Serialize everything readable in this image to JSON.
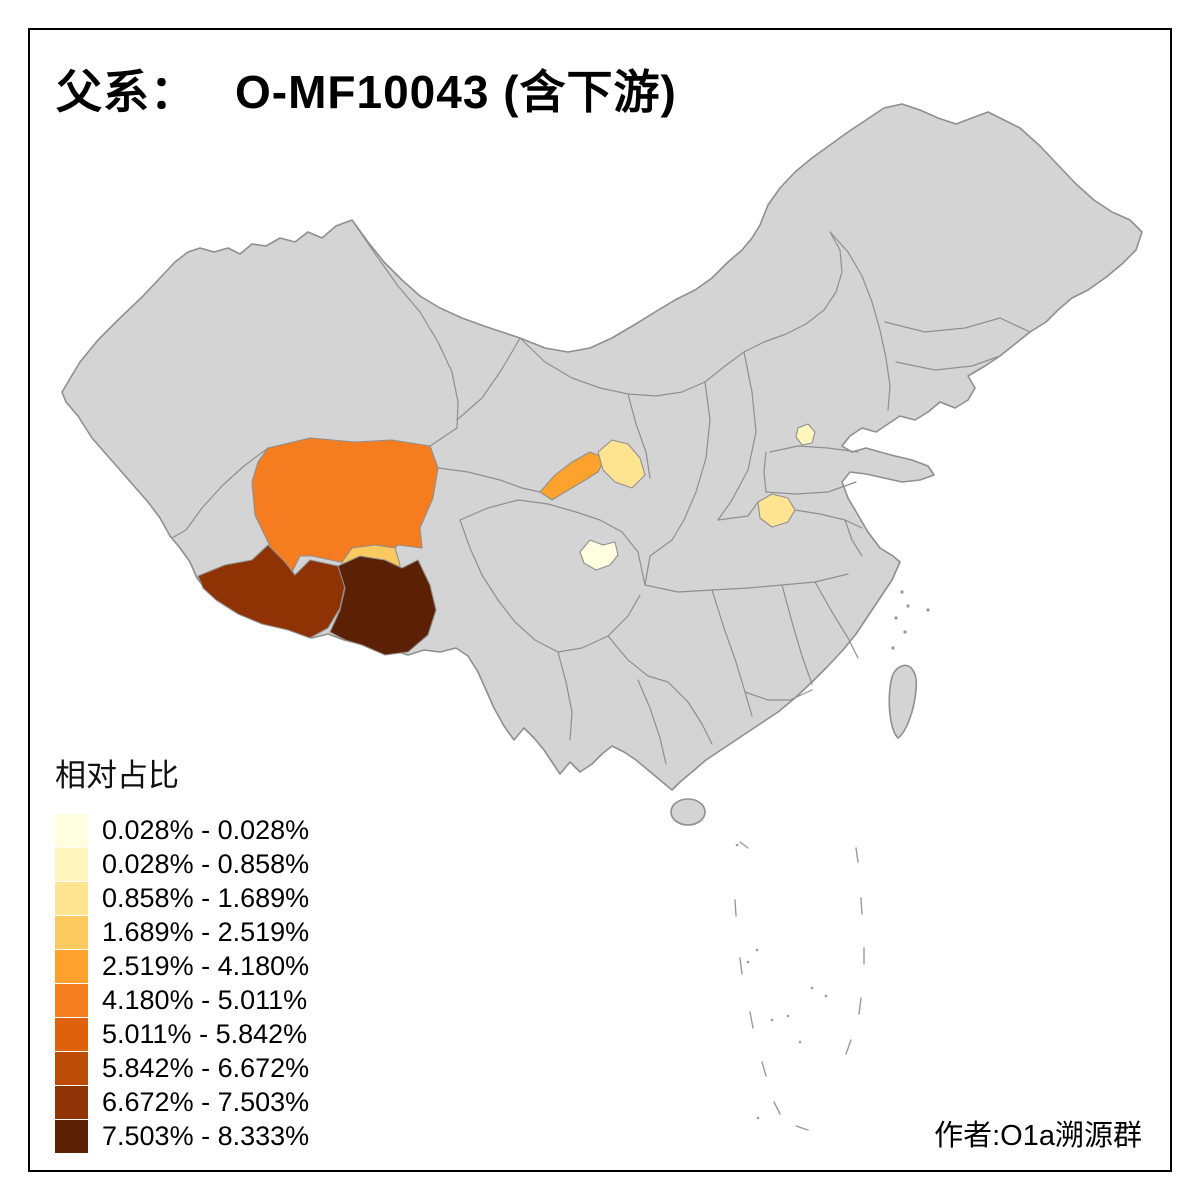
{
  "title": {
    "prefix": "父系：",
    "main": "O-MF10043 (含下游)"
  },
  "legend": {
    "title": "相对占比",
    "items": [
      {
        "label": "0.028% - 0.028%",
        "color": "#FFFFE0"
      },
      {
        "label": "0.028% - 0.858%",
        "color": "#FFF6BE"
      },
      {
        "label": "0.858% - 1.689%",
        "color": "#FEE391"
      },
      {
        "label": "1.689% - 2.519%",
        "color": "#FEC95F"
      },
      {
        "label": "2.519% - 4.180%",
        "color": "#FEA22E"
      },
      {
        "label": "4.180% - 5.011%",
        "color": "#F57D20"
      },
      {
        "label": "5.011% - 5.842%",
        "color": "#DE620C"
      },
      {
        "label": "5.842% - 6.672%",
        "color": "#BC4B06"
      },
      {
        "label": "6.672% - 7.503%",
        "color": "#8F3204"
      },
      {
        "label": "7.503% - 8.333%",
        "color": "#5C2104"
      }
    ]
  },
  "credit": "作者:O1a溯源群",
  "map": {
    "land_color": "#D4D4D4",
    "border_color": "#8F8F8F",
    "background": "#FFFFFF",
    "regions": [
      {
        "id": "qinghai",
        "class_index": 5
      },
      {
        "id": "tibet-west",
        "class_index": 8
      },
      {
        "id": "tibet-southeast",
        "class_index": 9
      },
      {
        "id": "qinghai-south-edge",
        "class_index": 3
      },
      {
        "id": "gansu-southwest",
        "class_index": 4
      },
      {
        "id": "gansu-east",
        "class_index": 2
      },
      {
        "id": "sichuan-center",
        "class_index": 0
      },
      {
        "id": "henan-patch",
        "class_index": 2
      },
      {
        "id": "shandong-patch",
        "class_index": 1
      }
    ]
  }
}
